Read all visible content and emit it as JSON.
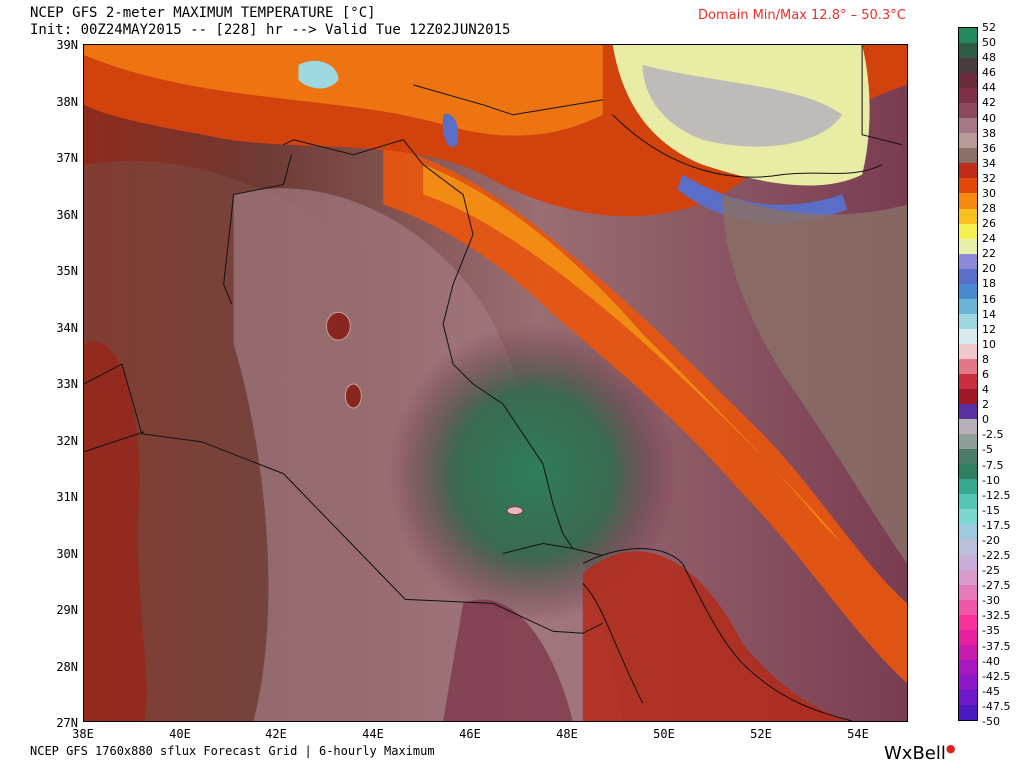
{
  "header": {
    "title": "NCEP GFS 2-meter MAXIMUM TEMPERATURE [°C]",
    "init_line": "Init: 00Z24MAY2015 -- [228] hr --> Valid Tue 12Z02JUN2015",
    "domain_minmax": "Domain Min/Max  12.8° –  50.3°C",
    "domain_color": "#e8302a"
  },
  "footer": {
    "text": "NCEP GFS 1760x880 sflux Forecast Grid | 6-hourly Maximum",
    "brand": "WxBell"
  },
  "map": {
    "lat_labels": [
      "39N",
      "38N",
      "37N",
      "36N",
      "35N",
      "34N",
      "33N",
      "32N",
      "31N",
      "30N",
      "29N",
      "28N",
      "27N"
    ],
    "lon_labels": [
      "38E",
      "40E",
      "42E",
      "44E",
      "46E",
      "48E",
      "50E",
      "52E",
      "54E"
    ]
  },
  "legend": {
    "labels": [
      "52",
      "50",
      "48",
      "46",
      "44",
      "42",
      "40",
      "38",
      "36",
      "34",
      "32",
      "30",
      "28",
      "26",
      "24",
      "22",
      "20",
      "18",
      "16",
      "14",
      "12",
      "10",
      "8",
      "6",
      "4",
      "2",
      "0",
      "-2.5",
      "-5",
      "-7.5",
      "-10",
      "-12.5",
      "-15",
      "-17.5",
      "-20",
      "-22.5",
      "-25",
      "-27.5",
      "-30",
      "-32.5",
      "-35",
      "-37.5",
      "-40",
      "-42.5",
      "-45",
      "-47.5",
      "-50"
    ],
    "colors": [
      "#23895a",
      "#2f5c44",
      "#4a3d3d",
      "#6b2c3c",
      "#7e3048",
      "#8c4a5e",
      "#a47884",
      "#b89a98",
      "#8a7068",
      "#c02a1a",
      "#e24a0a",
      "#f58a12",
      "#f8c020",
      "#f6ef52",
      "#e8f0a8",
      "#8a8ad8",
      "#5a6ec8",
      "#4a8ad0",
      "#6ab4d8",
      "#9ed8e0",
      "#d8ecf0",
      "#f0c8cc",
      "#e07888",
      "#c83040",
      "#9e1828",
      "#5a30a0",
      "#b8b0b8",
      "#8e9e98",
      "#4a7e68",
      "#2e7e62",
      "#36a88e",
      "#56c6b4",
      "#7ad8d0",
      "#9ecae0",
      "#b8c0dc",
      "#c8aed8",
      "#d89ac8",
      "#e47ab8",
      "#ee56a8",
      "#f8329a",
      "#e820a0",
      "#c81cb0",
      "#a818c0",
      "#8c18c8",
      "#6c18c8",
      "#4c18c0"
    ]
  }
}
